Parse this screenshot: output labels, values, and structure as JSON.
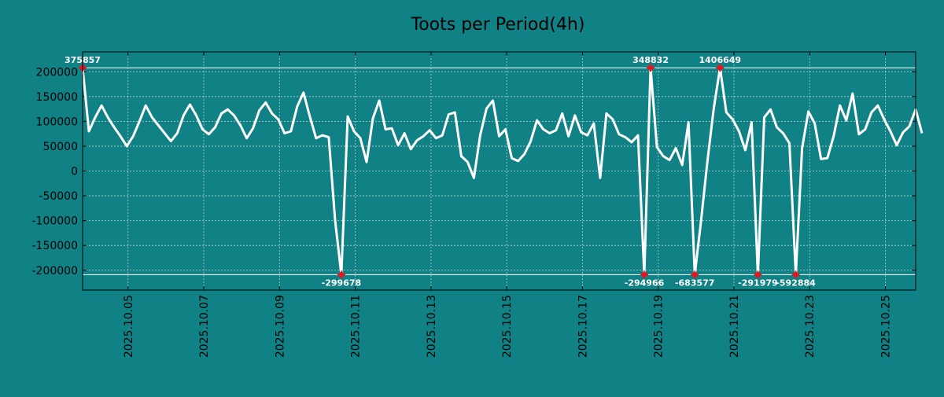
{
  "chart_data": {
    "type": "line",
    "title": "Toots per Period(4h)",
    "xlabel": "",
    "ylabel": "",
    "ylim": [
      -240000,
      240000
    ],
    "x_start_day": 3.8,
    "x_end_day": 25.8,
    "points_per_day": 6,
    "x_tick_days": [
      5,
      7,
      9,
      11,
      13,
      15,
      17,
      19,
      21,
      23,
      25
    ],
    "x_tick_labels": [
      "2025.10.05",
      "2025.10.07",
      "2025.10.09",
      "2025.10.11",
      "2025.10.13",
      "2025.10.15",
      "2025.10.17",
      "2025.10.19",
      "2025.10.21",
      "2025.10.23",
      "2025.10.25"
    ],
    "y_ticks": [
      200000,
      150000,
      100000,
      50000,
      0,
      -50000,
      -100000,
      -150000,
      -200000
    ],
    "y_tick_labels": [
      "200000",
      "150000",
      "100000",
      "50000",
      "0",
      "-50000",
      "-100000",
      "-150000",
      "-200000"
    ],
    "clip_limits": {
      "upper": 208000,
      "lower": -209000
    },
    "grid": true,
    "line_color": "#ffffff",
    "marker_color": "#e8141e",
    "background_color": "#108285",
    "text_color": "#000000",
    "series": [
      {
        "name": "Toots per Period(4h)",
        "values": [
          208000,
          80000,
          108000,
          132000,
          108000,
          88000,
          70000,
          50000,
          70000,
          100000,
          132000,
          108000,
          92000,
          76000,
          60000,
          76000,
          112000,
          134000,
          112000,
          84000,
          74000,
          88000,
          116000,
          124000,
          112000,
          92000,
          66000,
          86000,
          122000,
          138000,
          116000,
          104000,
          76000,
          80000,
          130000,
          158000,
          110000,
          66000,
          72000,
          68000,
          -98000,
          -209000,
          110000,
          80000,
          66000,
          18000,
          106000,
          142000,
          84000,
          86000,
          52000,
          76000,
          44000,
          62000,
          70000,
          82000,
          66000,
          72000,
          114000,
          118000,
          30000,
          18000,
          -14000,
          72000,
          126000,
          142000,
          70000,
          84000,
          26000,
          20000,
          34000,
          60000,
          102000,
          84000,
          76000,
          82000,
          116000,
          70000,
          112000,
          78000,
          72000,
          96000,
          -14000,
          116000,
          104000,
          74000,
          68000,
          58000,
          72000,
          -209000,
          208000,
          48000,
          30000,
          22000,
          46000,
          12000,
          98000,
          -209000,
          -100000,
          20000,
          126000,
          208000,
          118000,
          104000,
          80000,
          42000,
          98000,
          -209000,
          108000,
          124000,
          88000,
          76000,
          56000,
          -209000,
          46000,
          120000,
          96000,
          24000,
          26000,
          70000,
          132000,
          102000,
          156000,
          74000,
          84000,
          118000,
          132000,
          104000,
          80000,
          52000,
          78000,
          90000,
          124000,
          76000
        ]
      }
    ],
    "annotations": [
      {
        "index": 0,
        "text": "375857",
        "position": "above"
      },
      {
        "index": 41,
        "text": "-299678",
        "position": "below"
      },
      {
        "index": 89,
        "text": "-294966",
        "position": "below"
      },
      {
        "index": 90,
        "text": "348832",
        "position": "above"
      },
      {
        "index": 97,
        "text": "-683577",
        "position": "below"
      },
      {
        "index": 101,
        "text": "1406649",
        "position": "above"
      },
      {
        "index": 107,
        "text": "-291979",
        "position": "below"
      },
      {
        "index": 113,
        "text": "-592884",
        "position": "below"
      }
    ]
  }
}
